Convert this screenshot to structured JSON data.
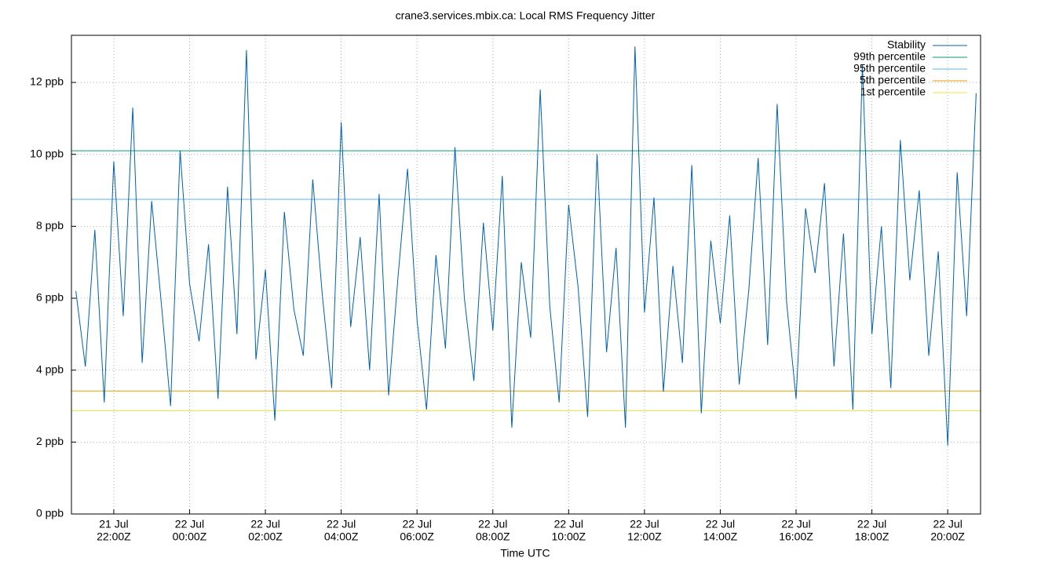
{
  "chart_data": {
    "type": "line",
    "title": "crane3.services.mbix.ca: Local RMS Frequency Jitter",
    "xlabel": "Time UTC",
    "x": [
      "21 Jul 21:00Z",
      "21 Jul 21:15Z",
      "21 Jul 21:30Z",
      "21 Jul 21:45Z",
      "21 Jul 22:00Z",
      "21 Jul 22:15Z",
      "21 Jul 22:30Z",
      "21 Jul 22:45Z",
      "21 Jul 23:00Z",
      "21 Jul 23:15Z",
      "21 Jul 23:30Z",
      "21 Jul 23:45Z",
      "22 Jul 00:00Z",
      "22 Jul 00:15Z",
      "22 Jul 00:30Z",
      "22 Jul 00:45Z",
      "22 Jul 01:00Z",
      "22 Jul 01:15Z",
      "22 Jul 01:30Z",
      "22 Jul 01:45Z",
      "22 Jul 02:00Z",
      "22 Jul 02:15Z",
      "22 Jul 02:30Z",
      "22 Jul 02:45Z",
      "22 Jul 03:00Z",
      "22 Jul 03:15Z",
      "22 Jul 03:30Z",
      "22 Jul 03:45Z",
      "22 Jul 04:00Z",
      "22 Jul 04:15Z",
      "22 Jul 04:30Z",
      "22 Jul 04:45Z",
      "22 Jul 05:00Z",
      "22 Jul 05:15Z",
      "22 Jul 05:30Z",
      "22 Jul 05:45Z",
      "22 Jul 06:00Z",
      "22 Jul 06:15Z",
      "22 Jul 06:30Z",
      "22 Jul 06:45Z",
      "22 Jul 07:00Z",
      "22 Jul 07:15Z",
      "22 Jul 07:30Z",
      "22 Jul 07:45Z",
      "22 Jul 08:00Z",
      "22 Jul 08:15Z",
      "22 Jul 08:30Z",
      "22 Jul 08:45Z",
      "22 Jul 09:00Z",
      "22 Jul 09:15Z",
      "22 Jul 09:30Z",
      "22 Jul 09:45Z",
      "22 Jul 10:00Z",
      "22 Jul 10:15Z",
      "22 Jul 10:30Z",
      "22 Jul 10:45Z",
      "22 Jul 11:00Z",
      "22 Jul 11:15Z",
      "22 Jul 11:30Z",
      "22 Jul 11:45Z",
      "22 Jul 12:00Z",
      "22 Jul 12:15Z",
      "22 Jul 12:30Z",
      "22 Jul 12:45Z",
      "22 Jul 13:00Z",
      "22 Jul 13:15Z",
      "22 Jul 13:30Z",
      "22 Jul 13:45Z",
      "22 Jul 14:00Z",
      "22 Jul 14:15Z",
      "22 Jul 14:30Z",
      "22 Jul 14:45Z",
      "22 Jul 15:00Z",
      "22 Jul 15:15Z",
      "22 Jul 15:30Z",
      "22 Jul 15:45Z",
      "22 Jul 16:00Z",
      "22 Jul 16:15Z",
      "22 Jul 16:30Z",
      "22 Jul 16:45Z",
      "22 Jul 17:00Z",
      "22 Jul 17:15Z",
      "22 Jul 17:30Z",
      "22 Jul 17:45Z",
      "22 Jul 18:00Z",
      "22 Jul 18:15Z",
      "22 Jul 18:30Z",
      "22 Jul 18:45Z",
      "22 Jul 19:00Z",
      "22 Jul 19:15Z",
      "22 Jul 19:30Z",
      "22 Jul 19:45Z",
      "22 Jul 20:00Z",
      "22 Jul 20:15Z",
      "22 Jul 20:30Z",
      "22 Jul 20:45Z"
    ],
    "series": [
      {
        "name": "Stability",
        "color": "#0060ad",
        "values": [
          6.2,
          4.1,
          7.9,
          3.1,
          9.8,
          5.5,
          11.3,
          4.2,
          8.7,
          5.9,
          3.0,
          10.1,
          6.4,
          4.8,
          7.5,
          3.2,
          9.1,
          5.0,
          12.9,
          4.3,
          6.8,
          2.6,
          8.4,
          5.7,
          4.4,
          9.3,
          6.1,
          3.5,
          10.9,
          5.2,
          7.7,
          4.0,
          8.9,
          3.3,
          6.6,
          9.6,
          5.4,
          2.9,
          7.2,
          4.6,
          10.2,
          6.0,
          3.7,
          8.1,
          5.1,
          9.4,
          2.4,
          7.0,
          4.9,
          11.8,
          5.8,
          3.1,
          8.6,
          6.3,
          2.7,
          10.0,
          4.5,
          7.4,
          2.4,
          13.0,
          5.6,
          8.8,
          3.4,
          6.9,
          4.2,
          9.7,
          2.8,
          7.6,
          5.3,
          8.3,
          3.6,
          6.2,
          9.9,
          4.7,
          11.4,
          5.9,
          3.2,
          8.5,
          6.7,
          9.2,
          4.1,
          7.8,
          2.9,
          12.5,
          5.0,
          8.0,
          3.5,
          10.4,
          6.5,
          9.0,
          4.4,
          7.3,
          1.9,
          9.5,
          5.5,
          11.7
        ]
      }
    ],
    "hlines": [
      {
        "name": "99th percentile",
        "color": "#009e73",
        "value": 10.1
      },
      {
        "name": "95th percentile",
        "color": "#56b4e9",
        "value": 8.75
      },
      {
        "name": "5th percentile",
        "color": "#e69f00",
        "value": 3.42
      },
      {
        "name": "1st percentile",
        "color": "#f0e442",
        "value": 2.87
      }
    ],
    "xlim": [
      "21 Jul 20:53Z",
      "22 Jul 20:52Z"
    ],
    "xticks": [
      {
        "date": "21 Jul",
        "time": "22:00Z"
      },
      {
        "date": "22 Jul",
        "time": "00:00Z"
      },
      {
        "date": "22 Jul",
        "time": "02:00Z"
      },
      {
        "date": "22 Jul",
        "time": "04:00Z"
      },
      {
        "date": "22 Jul",
        "time": "06:00Z"
      },
      {
        "date": "22 Jul",
        "time": "08:00Z"
      },
      {
        "date": "22 Jul",
        "time": "10:00Z"
      },
      {
        "date": "22 Jul",
        "time": "12:00Z"
      },
      {
        "date": "22 Jul",
        "time": "14:00Z"
      },
      {
        "date": "22 Jul",
        "time": "16:00Z"
      },
      {
        "date": "22 Jul",
        "time": "18:00Z"
      },
      {
        "date": "22 Jul",
        "time": "20:00Z"
      }
    ],
    "ylim": [
      0,
      13.31
    ],
    "yticks": [
      {
        "value": 0,
        "label": "0 ppb"
      },
      {
        "value": 2,
        "label": "2 ppb"
      },
      {
        "value": 4,
        "label": "4 ppb"
      },
      {
        "value": 6,
        "label": "6 ppb"
      },
      {
        "value": 8,
        "label": "8 ppb"
      },
      {
        "value": 10,
        "label": "10 ppb"
      },
      {
        "value": 12,
        "label": "12 ppb"
      }
    ],
    "grid": true,
    "legend": "top-right"
  }
}
